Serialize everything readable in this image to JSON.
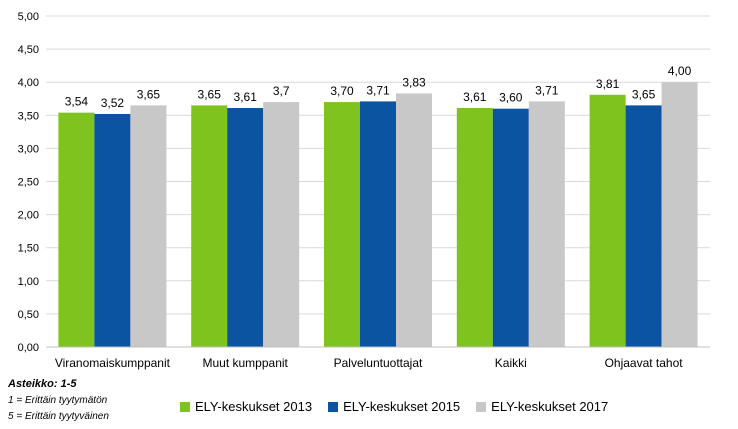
{
  "chart_data": {
    "type": "bar",
    "categories": [
      "Viranomaiskumppanit",
      "Muut kumppanit",
      "Palveluntuottajat",
      "Kaikki",
      "Ohjaavat tahot"
    ],
    "series": [
      {
        "name": "ELY-keskukset 2013",
        "values": [
          3.54,
          3.65,
          3.7,
          3.61,
          3.81
        ],
        "labels": [
          "3,54",
          "3,65",
          "3,70",
          "3,61",
          "3,81"
        ],
        "color": "#7fc41e"
      },
      {
        "name": "ELY-keskukset 2015",
        "values": [
          3.52,
          3.61,
          3.71,
          3.6,
          3.65
        ],
        "labels": [
          "3,52",
          "3,61",
          "3,71",
          "3,60",
          "3,65"
        ],
        "color": "#0a54a1"
      },
      {
        "name": "ELY-keskukset 2017",
        "values": [
          3.65,
          3.7,
          3.83,
          3.71,
          4.0
        ],
        "labels": [
          "3,65",
          "3,7",
          "3,83",
          "3,71",
          "4,00"
        ],
        "color": "#c8c8c8"
      }
    ],
    "ylim": [
      0,
      5
    ],
    "yticks": [
      0,
      0.5,
      1,
      1.5,
      2,
      2.5,
      3,
      3.5,
      4,
      4.5,
      5
    ],
    "ytick_labels": [
      "0,00",
      "0,50",
      "1,00",
      "1,50",
      "2,00",
      "2,50",
      "3,00",
      "3,50",
      "4,00",
      "4,50",
      "5,00"
    ],
    "grid": true,
    "legend_position": "bottom"
  },
  "notes": {
    "scale_title": "Asteikko: 1-5",
    "scale_min": "1 = Erittäin tyytymätön",
    "scale_max": "5 = Erittäin tyytyväinen"
  }
}
